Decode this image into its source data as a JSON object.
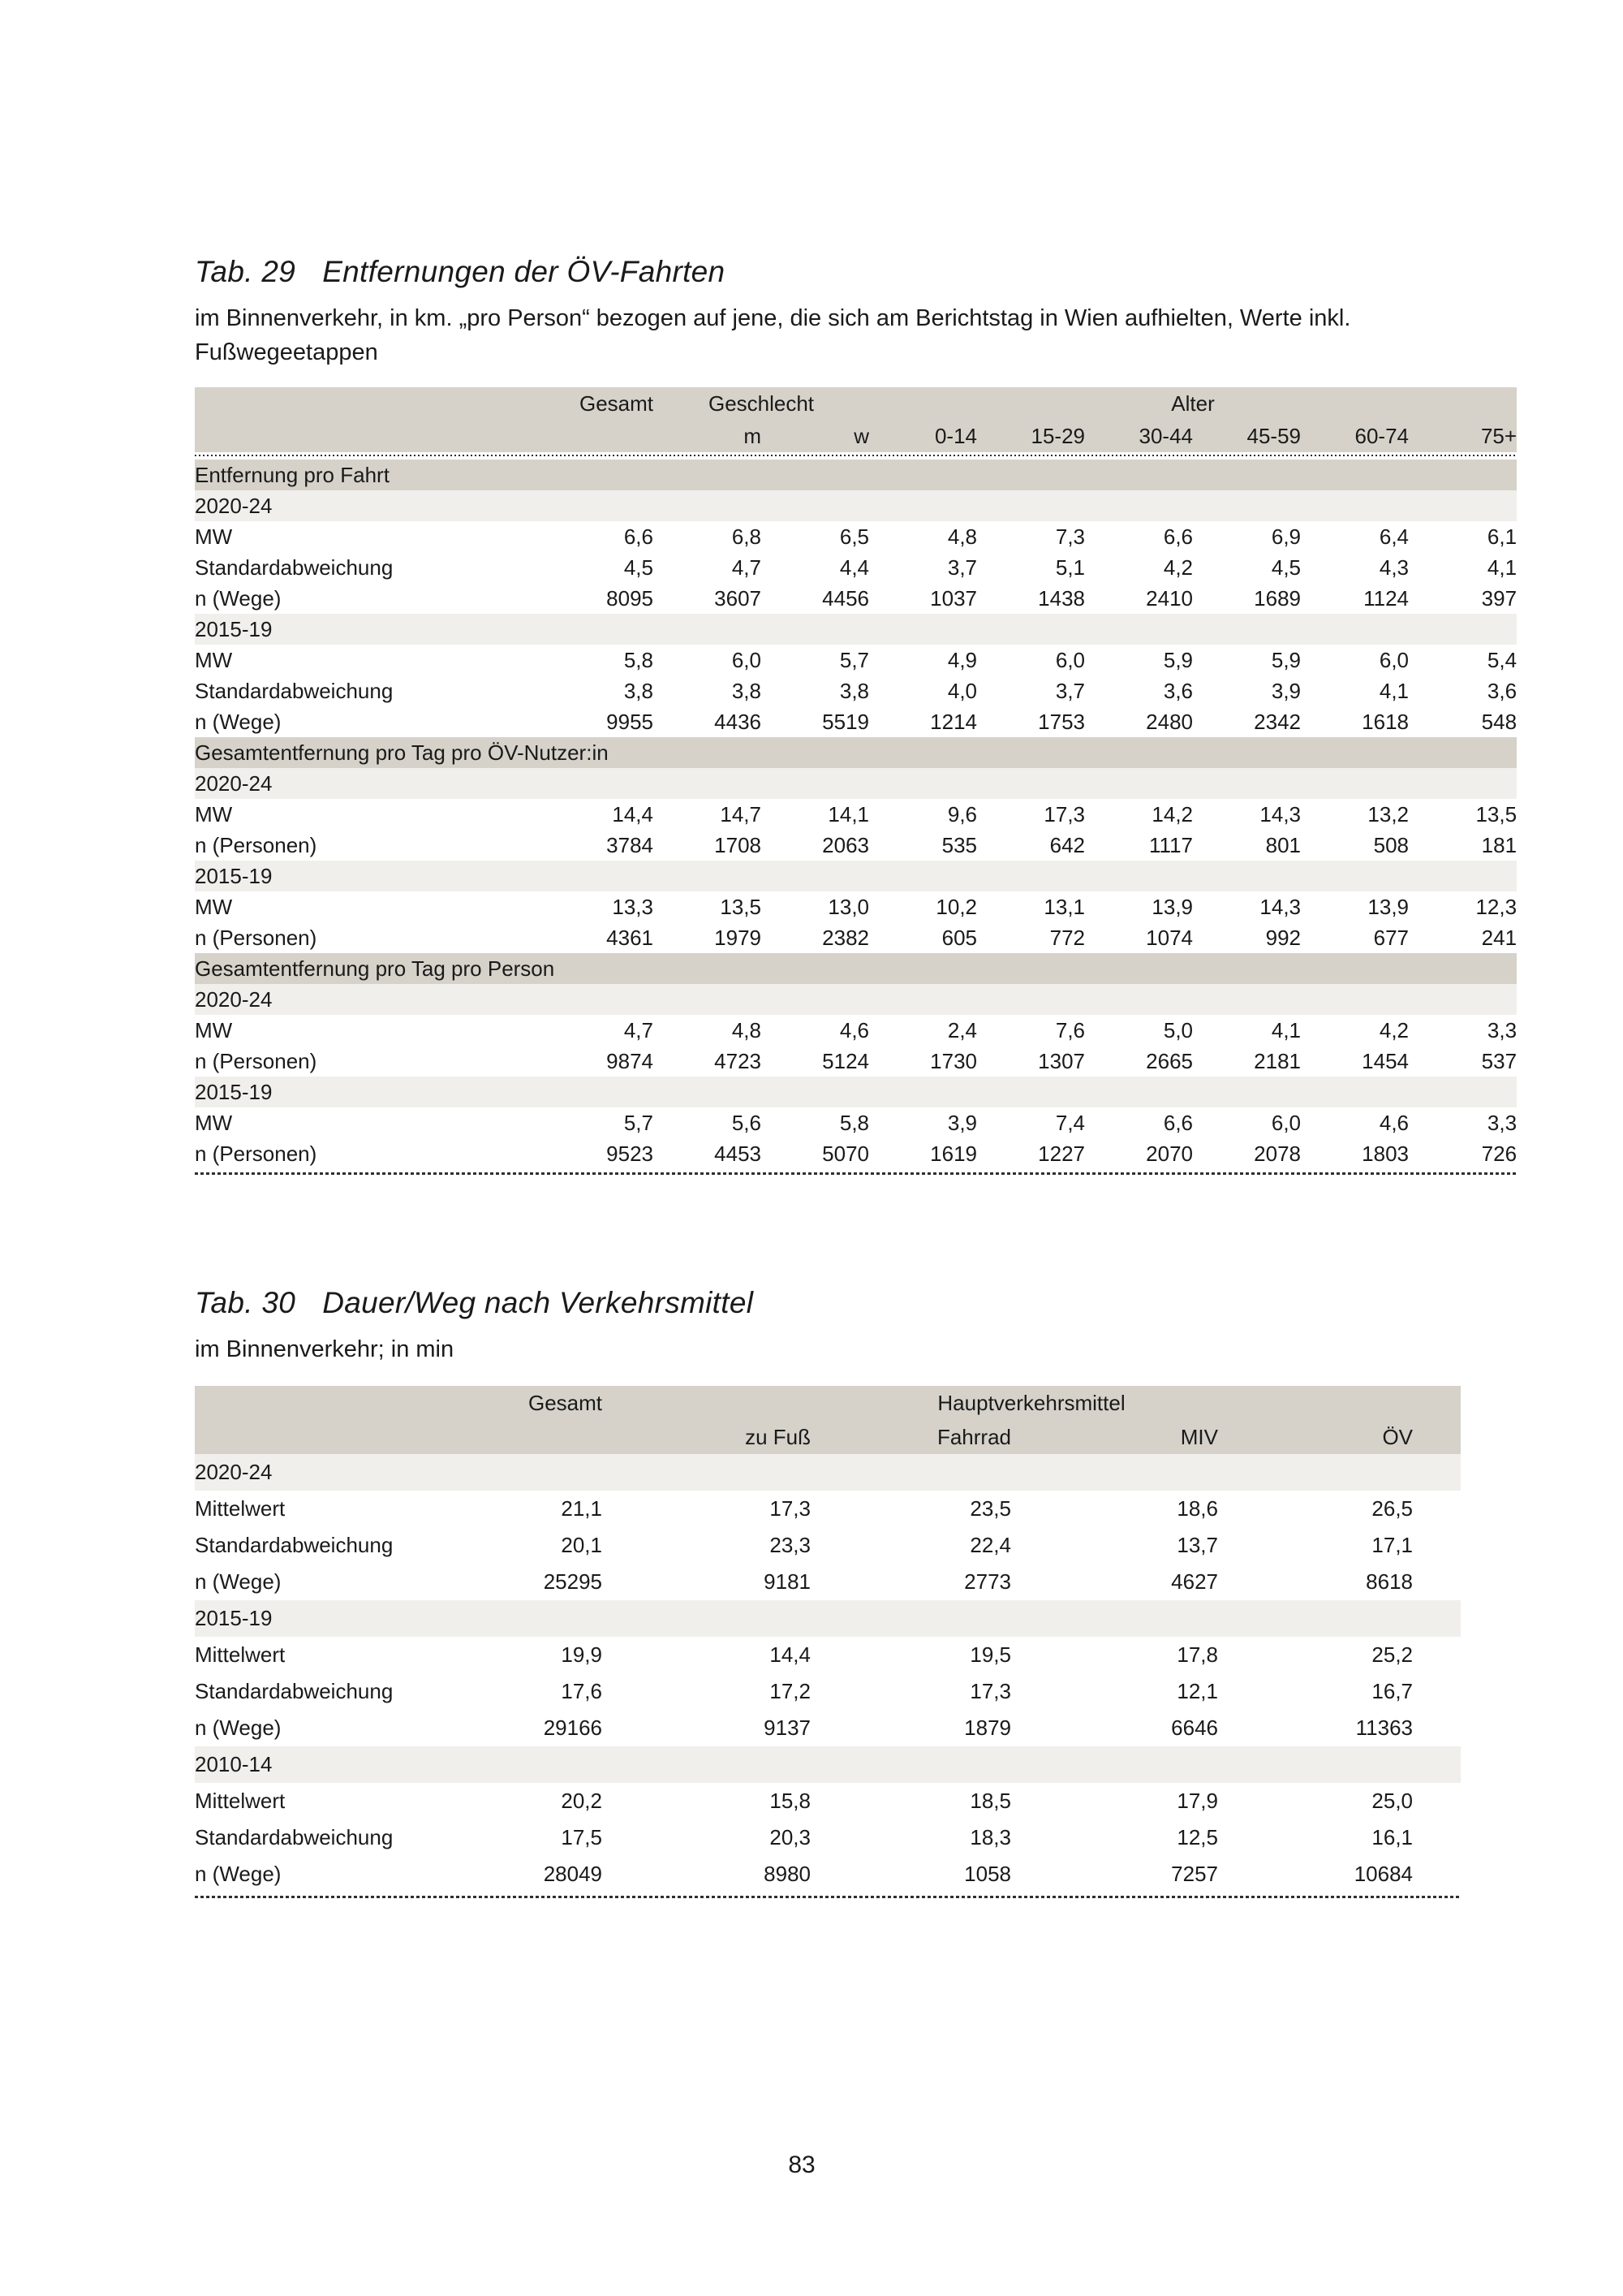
{
  "page": {
    "number": "83"
  },
  "tab29": {
    "label": "Tab. 29",
    "title": "Entfernungen der ÖV-Fahrten",
    "subtitle_lines": [
      "im Binnenverkehr, in km. „pro Person“ bezogen auf jene, die sich am Berichtstag in Wien aufhielten, Werte inkl.",
      "Fußwegeetappen"
    ],
    "col_groups": [
      {
        "label": "Gesamt",
        "span": 1
      },
      {
        "label": "Geschlecht",
        "span": 2
      },
      {
        "label": "Alter",
        "span": 6
      }
    ],
    "sub_columns": [
      "",
      "m",
      "w",
      "0-14",
      "15-29",
      "30-44",
      "45-59",
      "60-74",
      "75+"
    ],
    "rows": [
      {
        "type": "section",
        "label": "Entfernung pro Fahrt"
      },
      {
        "type": "year",
        "label": "2020-24"
      },
      {
        "type": "data",
        "label": "MW",
        "values": [
          "6,6",
          "6,8",
          "6,5",
          "4,8",
          "7,3",
          "6,6",
          "6,9",
          "6,4",
          "6,1"
        ]
      },
      {
        "type": "data",
        "label": "Standardabweichung",
        "values": [
          "4,5",
          "4,7",
          "4,4",
          "3,7",
          "5,1",
          "4,2",
          "4,5",
          "4,3",
          "4,1"
        ]
      },
      {
        "type": "data",
        "label": "n (Wege)",
        "values": [
          "8095",
          "3607",
          "4456",
          "1037",
          "1438",
          "2410",
          "1689",
          "1124",
          "397"
        ]
      },
      {
        "type": "year",
        "label": "2015-19"
      },
      {
        "type": "data",
        "label": "MW",
        "values": [
          "5,8",
          "6,0",
          "5,7",
          "4,9",
          "6,0",
          "5,9",
          "5,9",
          "6,0",
          "5,4"
        ]
      },
      {
        "type": "data",
        "label": "Standardabweichung",
        "values": [
          "3,8",
          "3,8",
          "3,8",
          "4,0",
          "3,7",
          "3,6",
          "3,9",
          "4,1",
          "3,6"
        ]
      },
      {
        "type": "data",
        "label": "n (Wege)",
        "values": [
          "9955",
          "4436",
          "5519",
          "1214",
          "1753",
          "2480",
          "2342",
          "1618",
          "548"
        ]
      },
      {
        "type": "section",
        "label": "Gesamtentfernung pro Tag pro ÖV-Nutzer:in"
      },
      {
        "type": "year",
        "label": "2020-24"
      },
      {
        "type": "data",
        "label": "MW",
        "values": [
          "14,4",
          "14,7",
          "14,1",
          "9,6",
          "17,3",
          "14,2",
          "14,3",
          "13,2",
          "13,5"
        ]
      },
      {
        "type": "data",
        "label": "n (Personen)",
        "values": [
          "3784",
          "1708",
          "2063",
          "535",
          "642",
          "1117",
          "801",
          "508",
          "181"
        ]
      },
      {
        "type": "year",
        "label": "2015-19"
      },
      {
        "type": "data",
        "label": "MW",
        "values": [
          "13,3",
          "13,5",
          "13,0",
          "10,2",
          "13,1",
          "13,9",
          "14,3",
          "13,9",
          "12,3"
        ]
      },
      {
        "type": "data",
        "label": "n (Personen)",
        "values": [
          "4361",
          "1979",
          "2382",
          "605",
          "772",
          "1074",
          "992",
          "677",
          "241"
        ]
      },
      {
        "type": "section",
        "label": "Gesamtentfernung pro Tag pro Person"
      },
      {
        "type": "year",
        "label": "2020-24"
      },
      {
        "type": "data",
        "label": "MW",
        "values": [
          "4,7",
          "4,8",
          "4,6",
          "2,4",
          "7,6",
          "5,0",
          "4,1",
          "4,2",
          "3,3"
        ]
      },
      {
        "type": "data",
        "label": "n (Personen)",
        "values": [
          "9874",
          "4723",
          "5124",
          "1730",
          "1307",
          "2665",
          "2181",
          "1454",
          "537"
        ]
      },
      {
        "type": "year",
        "label": "2015-19"
      },
      {
        "type": "data",
        "label": "MW",
        "values": [
          "5,7",
          "5,6",
          "5,8",
          "3,9",
          "7,4",
          "6,6",
          "6,0",
          "4,6",
          "3,3"
        ]
      },
      {
        "type": "data",
        "label": "n (Personen)",
        "values": [
          "9523",
          "4453",
          "5070",
          "1619",
          "1227",
          "2070",
          "2078",
          "1803",
          "726"
        ]
      }
    ]
  },
  "tab30": {
    "label": "Tab. 30",
    "title": "Dauer/Weg nach Verkehrsmittel",
    "subtitle_lines": [
      "im Binnenverkehr; in min"
    ],
    "col_groups": [
      {
        "label": "Gesamt",
        "span": 1
      },
      {
        "label": "Hauptverkehrsmittel",
        "span": 4
      }
    ],
    "sub_columns": [
      "",
      "zu Fuß",
      "Fahrrad",
      "MIV",
      "ÖV"
    ],
    "rows": [
      {
        "type": "year",
        "label": "2020-24"
      },
      {
        "type": "data",
        "label": "Mittelwert",
        "values": [
          "21,1",
          "17,3",
          "23,5",
          "18,6",
          "26,5"
        ]
      },
      {
        "type": "data",
        "label": "Standardabweichung",
        "values": [
          "20,1",
          "23,3",
          "22,4",
          "13,7",
          "17,1"
        ]
      },
      {
        "type": "data",
        "label": "n (Wege)",
        "values": [
          "25295",
          "9181",
          "2773",
          "4627",
          "8618"
        ]
      },
      {
        "type": "year",
        "label": "2015-19"
      },
      {
        "type": "data",
        "label": "Mittelwert",
        "values": [
          "19,9",
          "14,4",
          "19,5",
          "17,8",
          "25,2"
        ]
      },
      {
        "type": "data",
        "label": "Standardabweichung",
        "values": [
          "17,6",
          "17,2",
          "17,3",
          "12,1",
          "16,7"
        ]
      },
      {
        "type": "data",
        "label": "n (Wege)",
        "values": [
          "29166",
          "9137",
          "1879",
          "6646",
          "11363"
        ]
      },
      {
        "type": "year",
        "label": "2010-14"
      },
      {
        "type": "data",
        "label": "Mittelwert",
        "values": [
          "20,2",
          "15,8",
          "18,5",
          "17,9",
          "25,0"
        ]
      },
      {
        "type": "data",
        "label": "Standardabweichung",
        "values": [
          "17,5",
          "20,3",
          "18,3",
          "12,5",
          "16,1"
        ]
      },
      {
        "type": "data",
        "label": "n (Wege)",
        "values": [
          "28049",
          "8980",
          "1058",
          "7257",
          "10684"
        ]
      }
    ]
  },
  "colors": {
    "section_band": "#d6d2ca",
    "year_band": "#f0efec",
    "text": "#1a1a1a"
  }
}
